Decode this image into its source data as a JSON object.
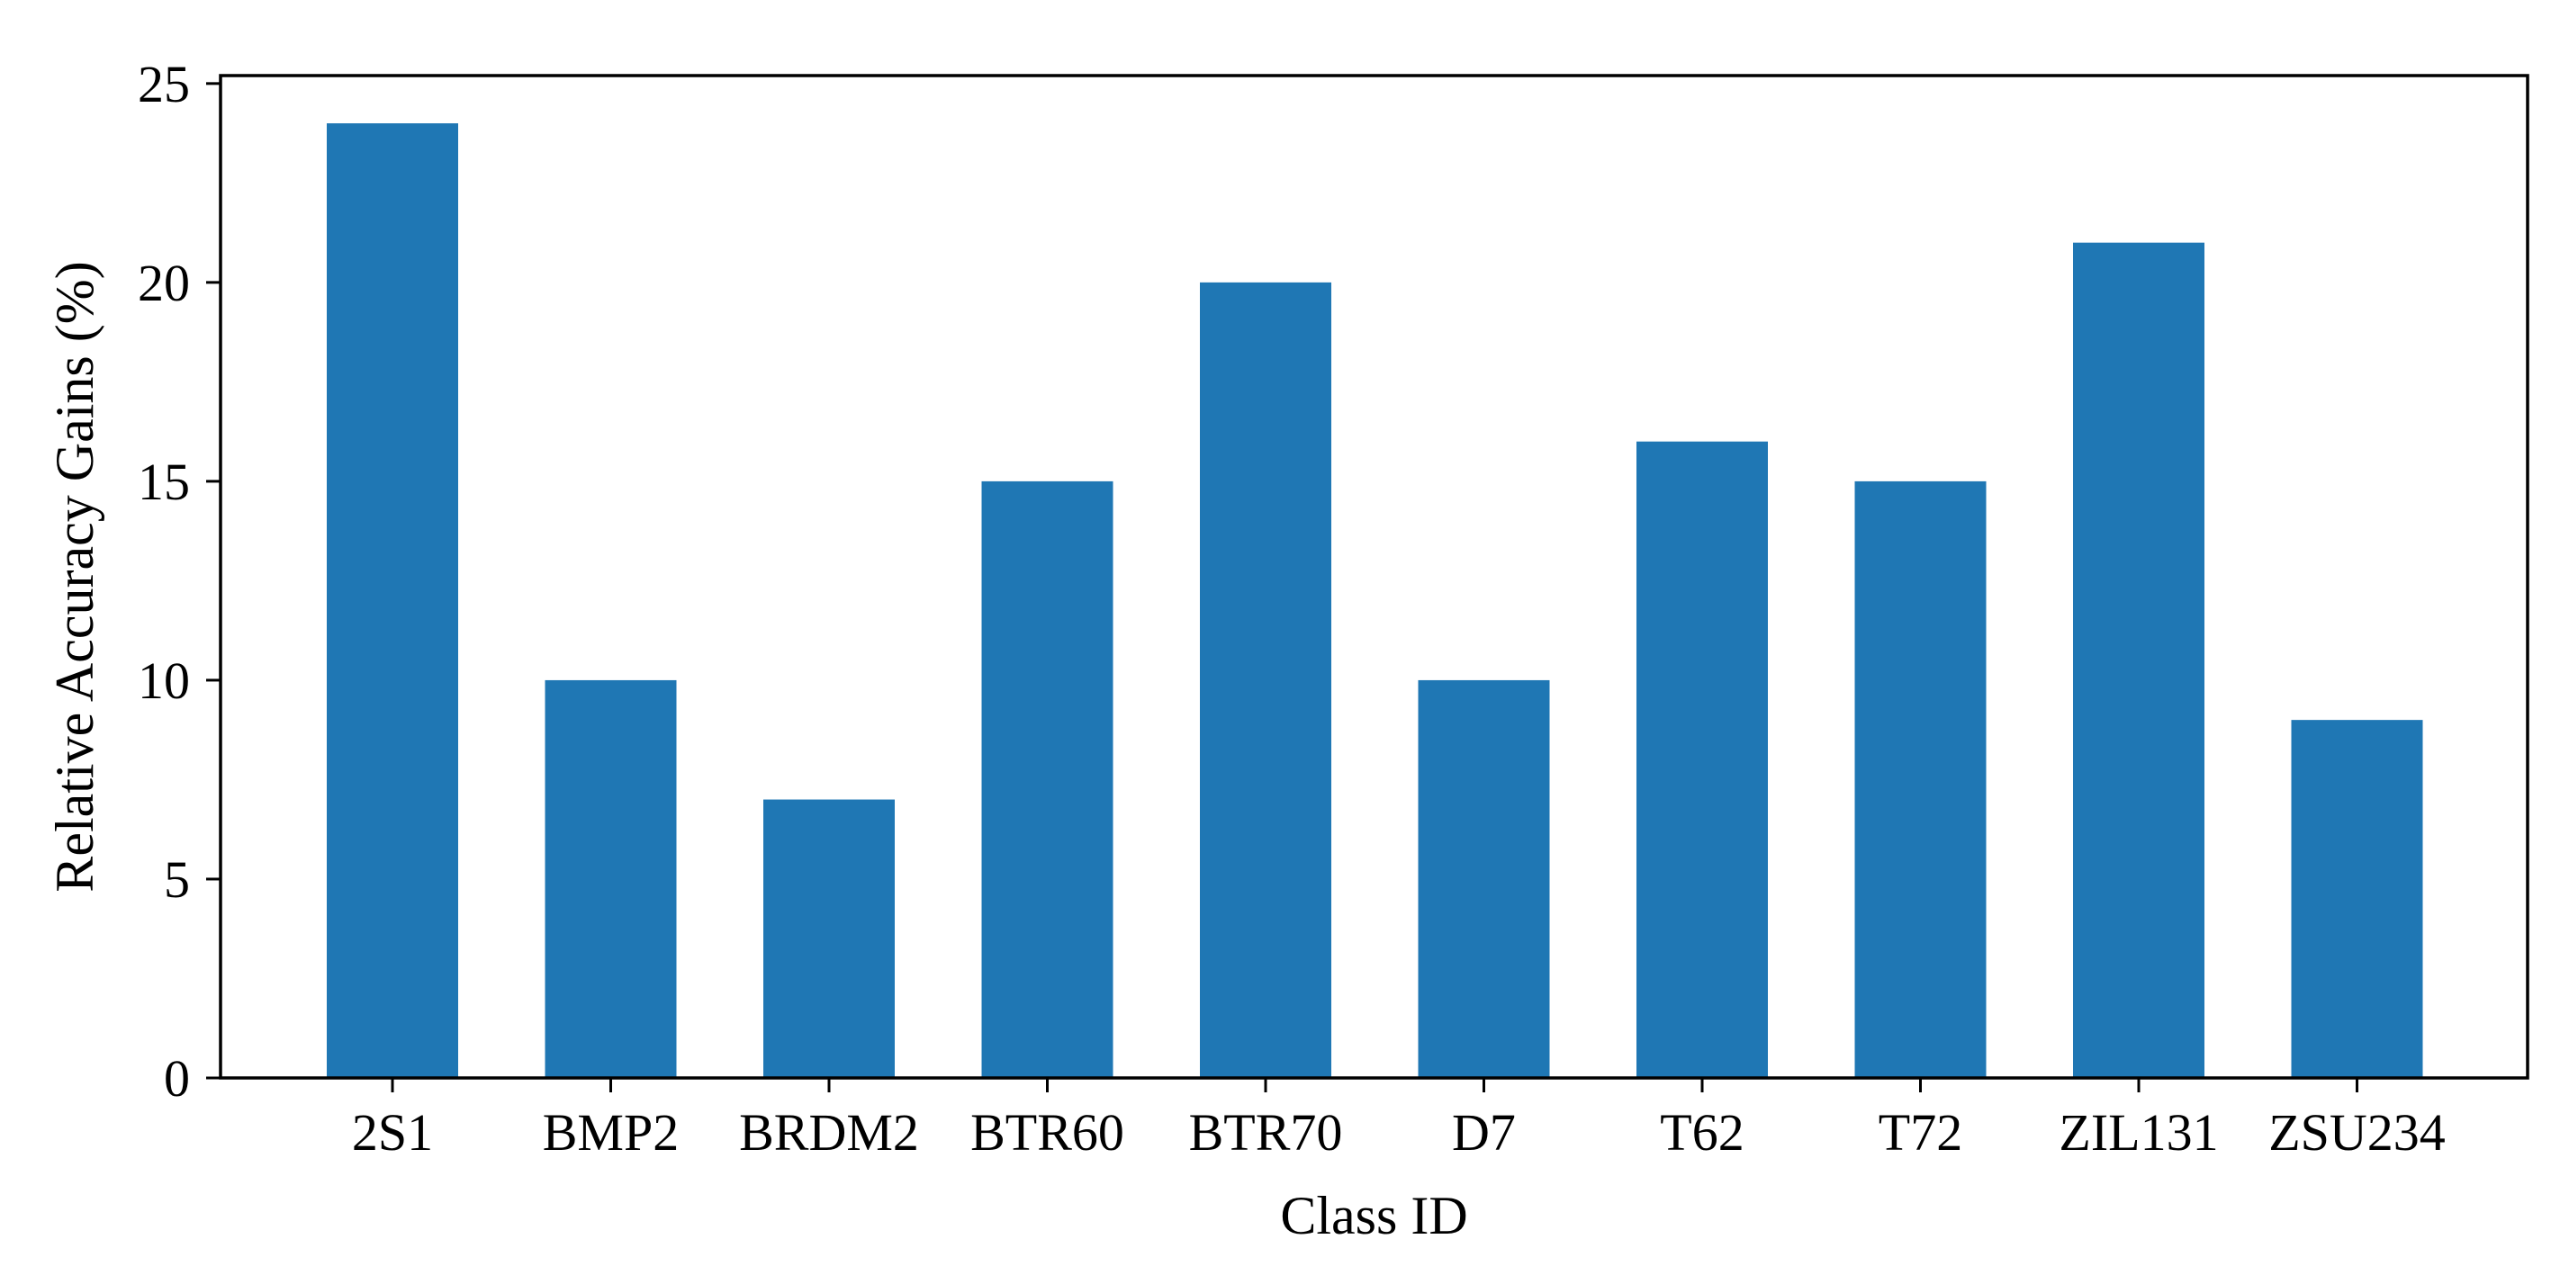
{
  "chart_data": {
    "type": "bar",
    "title": "",
    "xlabel": "Class ID",
    "ylabel": "Relative Accuracy Gains (%)",
    "categories": [
      "2S1",
      "BMP2",
      "BRDM2",
      "BTR60",
      "BTR70",
      "D7",
      "T62",
      "T72",
      "ZIL131",
      "ZSU234"
    ],
    "values": [
      24,
      10,
      7,
      15,
      20,
      10,
      16,
      15,
      21,
      9
    ],
    "ylim": [
      0,
      25.2
    ],
    "yticks": [
      0,
      5,
      10,
      15,
      20,
      25
    ],
    "grid": false,
    "legend": "none",
    "bar_color": "#1f77b4"
  }
}
